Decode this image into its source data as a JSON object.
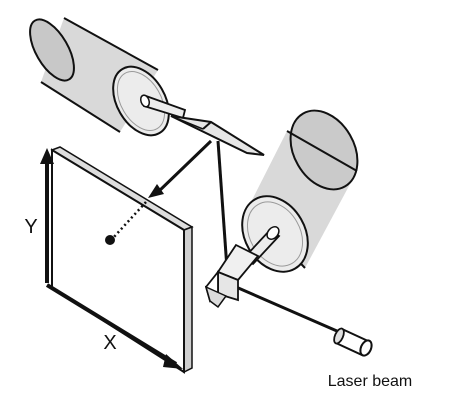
{
  "labels": {
    "y_axis": "Y",
    "x_axis": "X",
    "laser": "Laser beam"
  },
  "colors": {
    "motor_body": "#d9d9d9",
    "motor_shade": "#bcbcbc",
    "motor_cap": "#ececec",
    "outline": "#111111",
    "screen": "#ffffff",
    "mirror": "#e6e6e6",
    "beam": "#111111"
  }
}
